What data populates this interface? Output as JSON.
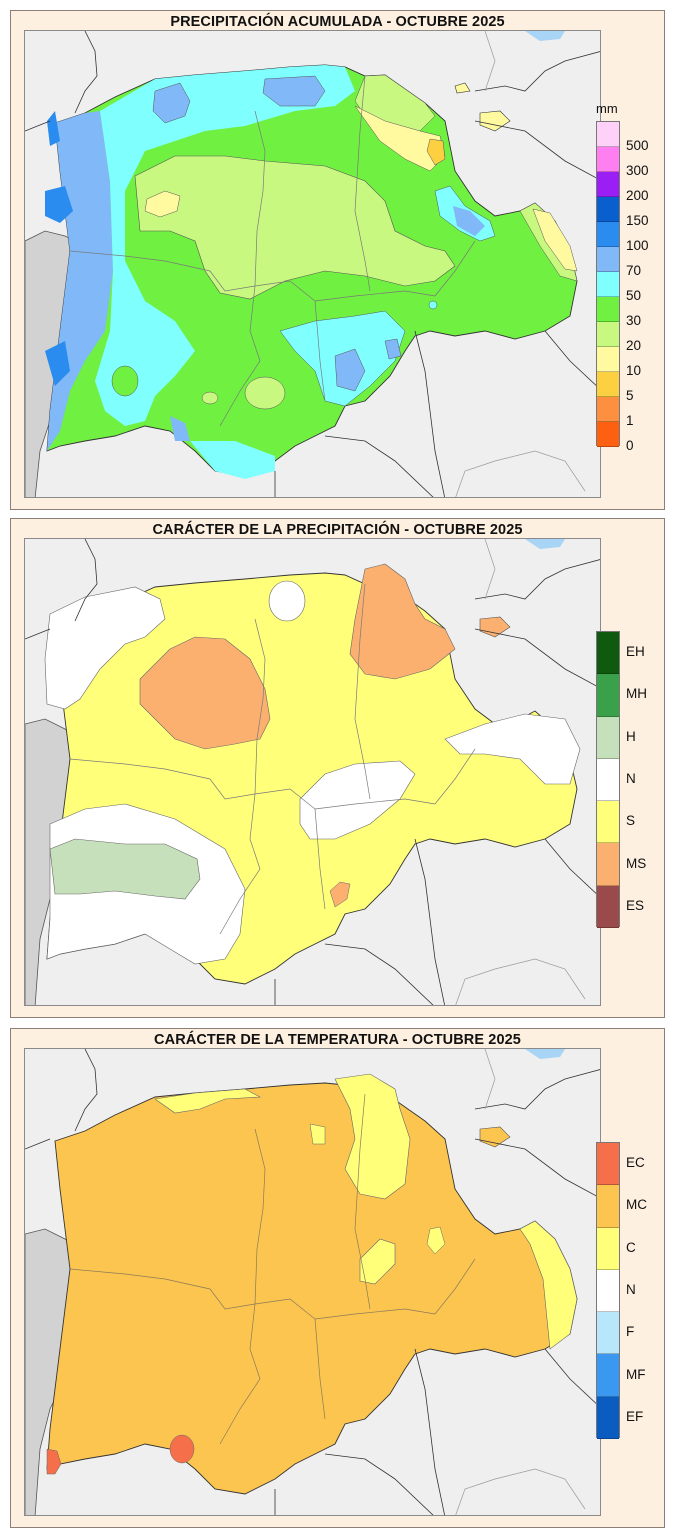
{
  "panels": [
    {
      "title": "PRECIPITACIÓN ACUMULADA - OCTUBRE 2025",
      "legend": {
        "unit": "mm",
        "type": "continuous",
        "swatches": [
          "#ffd0f8",
          "#ff7ff0",
          "#9b1ff5",
          "#0a5fcf",
          "#2b8cf0",
          "#80b8f8",
          "#80ffff",
          "#70f040",
          "#c8f880",
          "#fffaa0",
          "#fcd040",
          "#fc9040",
          "#fc6010"
        ],
        "labels": [
          "500",
          "300",
          "200",
          "150",
          "100",
          "70",
          "50",
          "30",
          "20",
          "10",
          "5",
          "1",
          "0"
        ]
      }
    },
    {
      "title": "CARÁCTER DE LA PRECIPITACIÓN - OCTUBRE 2025",
      "legend": {
        "type": "categorical",
        "items": [
          {
            "code": "EH",
            "color": "#0f5a0f"
          },
          {
            "code": "MH",
            "color": "#3aa04a"
          },
          {
            "code": "H",
            "color": "#c6e0bb"
          },
          {
            "code": "N",
            "color": "#ffffff"
          },
          {
            "code": "S",
            "color": "#ffff7a"
          },
          {
            "code": "MS",
            "color": "#fcb070"
          },
          {
            "code": "ES",
            "color": "#9a4a4a"
          }
        ]
      }
    },
    {
      "title": "CARÁCTER DE LA TEMPERATURA - OCTUBRE 2025",
      "legend": {
        "type": "categorical",
        "items": [
          {
            "code": "EC",
            "color": "#f5704a"
          },
          {
            "code": "MC",
            "color": "#fcc550"
          },
          {
            "code": "C",
            "color": "#ffff7a"
          },
          {
            "code": "N",
            "color": "#ffffff"
          },
          {
            "code": "F",
            "color": "#b8e6fa"
          },
          {
            "code": "MF",
            "color": "#3a98f0"
          },
          {
            "code": "EF",
            "color": "#0a5cc0"
          }
        ]
      }
    }
  ],
  "colors": {
    "panel_bg": "#fdf0e1",
    "map_bg": "#efefef",
    "portugal_bg": "#d2d2d2",
    "sea": "#a8d4f5"
  }
}
